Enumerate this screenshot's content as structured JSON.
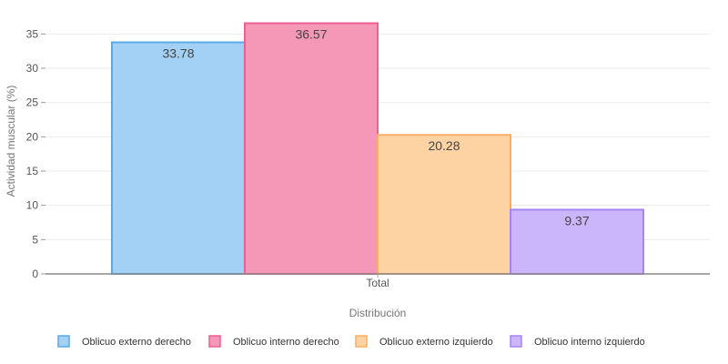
{
  "chart_data": {
    "type": "bar",
    "categories": [
      "Total"
    ],
    "series": [
      {
        "name": "Oblicuo externo derecho",
        "values": [
          33.78
        ],
        "color": "#a3d0f5",
        "border": "#5aa9e6"
      },
      {
        "name": "Oblicuo interno derecho",
        "values": [
          36.57
        ],
        "color": "#f597b6",
        "border": "#ef5f93"
      },
      {
        "name": "Oblicuo externo izquierdo",
        "values": [
          20.28
        ],
        "color": "#fdd3a4",
        "border": "#f9ae63"
      },
      {
        "name": "Oblicuo interno izquierdo",
        "values": [
          9.37
        ],
        "color": "#ccb6fb",
        "border": "#a783f4"
      }
    ],
    "xlabel": "Distribución",
    "ylabel": "Actividad muscular (%)",
    "ylim": [
      0,
      37.3
    ],
    "yticks": [
      "0",
      "5",
      "10",
      "15",
      "20",
      "25",
      "30",
      "35"
    ],
    "grid": true,
    "legend": "bottom"
  }
}
